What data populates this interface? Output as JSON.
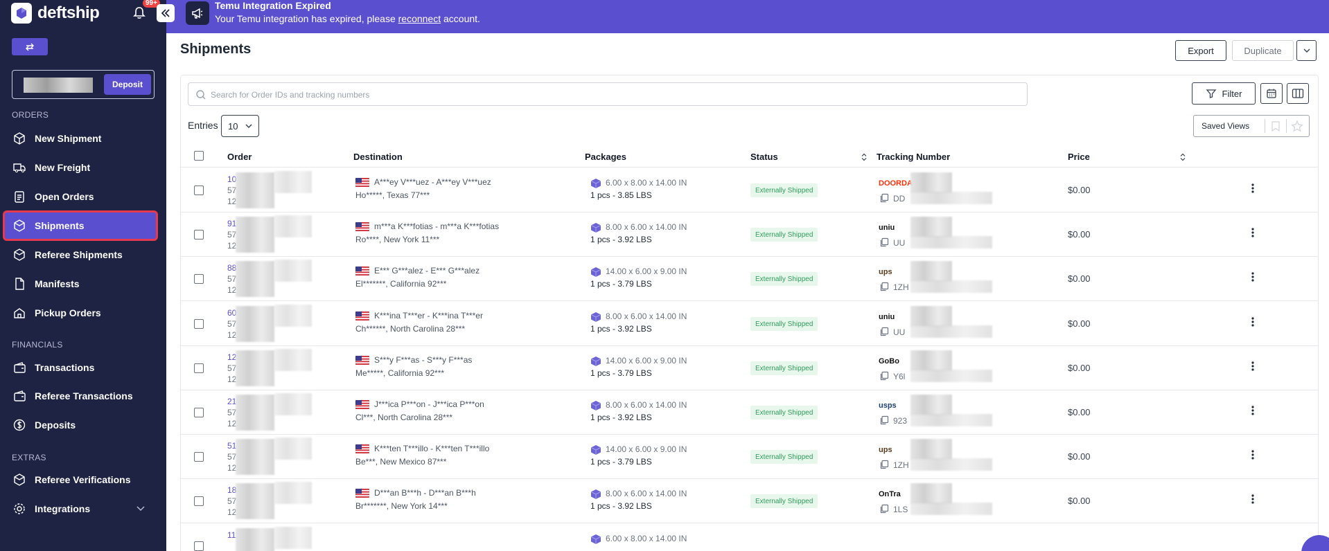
{
  "sidebar": {
    "brand": "deftship",
    "notifications_badge": "99+",
    "deposit_label": "Deposit",
    "sections": {
      "orders": "ORDERS",
      "financials": "FINANCIALS",
      "extras": "EXTRAS"
    },
    "items": [
      {
        "label": "New Shipment",
        "icon": "box-icon"
      },
      {
        "label": "New Freight",
        "icon": "truck-icon"
      },
      {
        "label": "Open Orders",
        "icon": "clipboard-icon"
      },
      {
        "label": "Shipments",
        "icon": "shipments-icon",
        "active": true
      },
      {
        "label": "Referee Shipments",
        "icon": "referee-shipments-icon"
      },
      {
        "label": "Manifests",
        "icon": "document-icon"
      },
      {
        "label": "Pickup Orders",
        "icon": "pickup-icon"
      },
      {
        "label": "Transactions",
        "icon": "wallet-icon"
      },
      {
        "label": "Referee Transactions",
        "icon": "wallet-icon"
      },
      {
        "label": "Deposits",
        "icon": "dollar-icon"
      },
      {
        "label": "Referee Verifications",
        "icon": "verify-icon"
      },
      {
        "label": "Integrations",
        "icon": "gear-icon"
      }
    ]
  },
  "banner": {
    "title": "Temu Integration Expired",
    "message_before": "Your Temu integration has expired, please ",
    "link": "reconnect",
    "message_after": " account."
  },
  "header": {
    "title": "Shipments",
    "export_label": "Export",
    "duplicate_label": "Duplicate"
  },
  "toolbar": {
    "search_placeholder": "Search for Order IDs and tracking numbers",
    "filter_label": "Filter",
    "entries_label": "Entries",
    "entries_value": "10",
    "saved_views_label": "Saved Views"
  },
  "table": {
    "columns": [
      "Order",
      "Destination",
      "Packages",
      "Status",
      "Tracking Number",
      "Price"
    ],
    "rows": [
      {
        "order": "10",
        "order2": "57",
        "order3": "12",
        "flag": "us",
        "name": "A***ey V***uez - A***ey V***uez",
        "addr": "Ho*****, Texas 77***",
        "dims": "6.00 x 8.00 x 14.00 IN",
        "weight": "1 pcs - 3.85 LBS",
        "status": "Externally Shipped",
        "carrier": "DOORDASH",
        "carrier_color": "#ff3008",
        "track": "DD",
        "price": "$0.00"
      },
      {
        "order": "91",
        "order2": "57",
        "order3": "12",
        "flag": "us",
        "name": "m***a K***fotias - m***a K***fotias",
        "addr": "Ro****, New York 11***",
        "dims": "8.00 x 6.00 x 14.00 IN",
        "weight": "1 pcs - 3.92 LBS",
        "status": "Externally Shipped",
        "carrier": "uniu",
        "carrier_color": "#111111",
        "track": "UU",
        "price": "$0.00"
      },
      {
        "order": "88",
        "order2": "57",
        "order3": "12",
        "flag": "us",
        "name": "E*** G***alez - E*** G***alez",
        "addr": "El*******, California 92***",
        "dims": "14.00 x 6.00 x 9.00 IN",
        "weight": "1 pcs - 3.79 LBS",
        "status": "Externally Shipped",
        "carrier": "ups",
        "carrier_color": "#5c3a1e",
        "track": "1ZH",
        "price": "$0.00"
      },
      {
        "order": "60",
        "order2": "57",
        "order3": "12",
        "flag": "us",
        "name": "K***ina T***er - K***ina T***er",
        "addr": "Ch******, North Carolina 28***",
        "dims": "8.00 x 6.00 x 14.00 IN",
        "weight": "1 pcs - 3.92 LBS",
        "status": "Externally Shipped",
        "carrier": "uniu",
        "carrier_color": "#111111",
        "track": "UU",
        "price": "$0.00"
      },
      {
        "order": "12",
        "order2": "57",
        "order3": "12",
        "flag": "us",
        "name": "S***y F***as - S***y F***as",
        "addr": "Me*****, California 92***",
        "dims": "14.00 x 6.00 x 9.00 IN",
        "weight": "1 pcs - 3.79 LBS",
        "status": "Externally Shipped",
        "carrier": "GoBo",
        "carrier_color": "#111111",
        "track": "Y6l",
        "price": "$0.00"
      },
      {
        "order": "21",
        "order2": "57",
        "order3": "12",
        "flag": "us",
        "name": "J***ica P***on - J***ica P***on",
        "addr": "Cl***, North Carolina 28***",
        "dims": "8.00 x 6.00 x 14.00 IN",
        "weight": "1 pcs - 3.92 LBS",
        "status": "Externally Shipped",
        "carrier": "usps",
        "carrier_color": "#1d3f7a",
        "track": "923",
        "price": "$0.00"
      },
      {
        "order": "51",
        "order2": "57",
        "order3": "12",
        "flag": "us",
        "name": "K***ten T***illo - K***ten T***illo",
        "addr": "Be***, New Mexico 87***",
        "dims": "14.00 x 6.00 x 9.00 IN",
        "weight": "1 pcs - 3.79 LBS",
        "status": "Externally Shipped",
        "carrier": "ups",
        "carrier_color": "#5c3a1e",
        "track": "1ZH",
        "price": "$0.00"
      },
      {
        "order": "18",
        "order2": "57",
        "order3": "12",
        "flag": "us",
        "name": "D***an B***h - D***an B***h",
        "addr": "Br*******, New York 14***",
        "dims": "8.00 x 6.00 x 14.00 IN",
        "weight": "1 pcs - 3.92 LBS",
        "status": "Externally Shipped",
        "carrier": "OnTra",
        "carrier_color": "#111111",
        "track": "1LS",
        "price": "$0.00"
      },
      {
        "order": "111",
        "order2": "",
        "order3": "",
        "flag": "us",
        "name": "",
        "addr": "",
        "dims": "6.00 x 8.00 x 14.00 IN",
        "weight": "",
        "status": "",
        "carrier": "",
        "carrier_color": "#111111",
        "track": "",
        "price": ""
      }
    ]
  }
}
